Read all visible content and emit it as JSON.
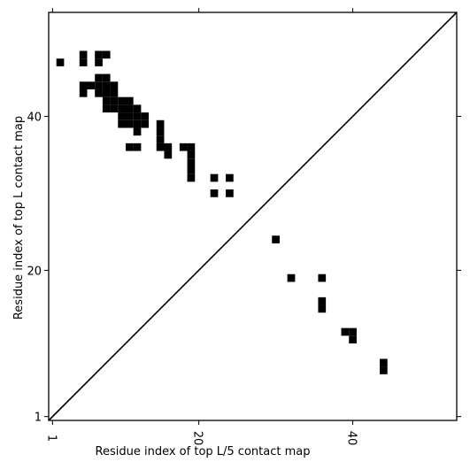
{
  "chart_data": {
    "type": "contact_map",
    "xlabel": "Residue index of top L/5 contact map",
    "ylabel": "Residue index of top L contact map",
    "xlim": [
      0.5,
      53.5
    ],
    "ylim": [
      0.5,
      53.5
    ],
    "xticks": [
      1,
      20,
      40
    ],
    "yticks": [
      1,
      20,
      40
    ],
    "diagonal": true,
    "series": [
      {
        "color": "#000000",
        "x": [
          2,
          5,
          5,
          7,
          7,
          8,
          7,
          8,
          5,
          6,
          7,
          8,
          9,
          5,
          7,
          8,
          9,
          8,
          9,
          10,
          11,
          8,
          9,
          10,
          11,
          12,
          10,
          11,
          12,
          13,
          10,
          11,
          12,
          13,
          12,
          11,
          12,
          15,
          15,
          15,
          15,
          16,
          16,
          18,
          19,
          19,
          19,
          19,
          19,
          22,
          24,
          22,
          24,
          30,
          32,
          36,
          36,
          36,
          39,
          40,
          40,
          44,
          44
        ],
        "y": [
          47,
          48,
          47,
          48,
          47,
          48,
          45,
          45,
          44,
          44,
          44,
          44,
          44,
          43,
          43,
          43,
          43,
          42,
          42,
          42,
          42,
          41,
          41,
          41,
          41,
          41,
          40,
          40,
          40,
          40,
          39,
          39,
          39,
          39,
          38,
          36,
          36,
          39,
          38,
          37,
          36,
          36,
          35,
          36,
          36,
          35,
          34,
          33,
          32,
          32,
          32,
          30,
          30,
          24,
          19,
          19,
          16,
          15,
          12,
          12,
          11,
          8,
          7
        ]
      }
    ]
  }
}
